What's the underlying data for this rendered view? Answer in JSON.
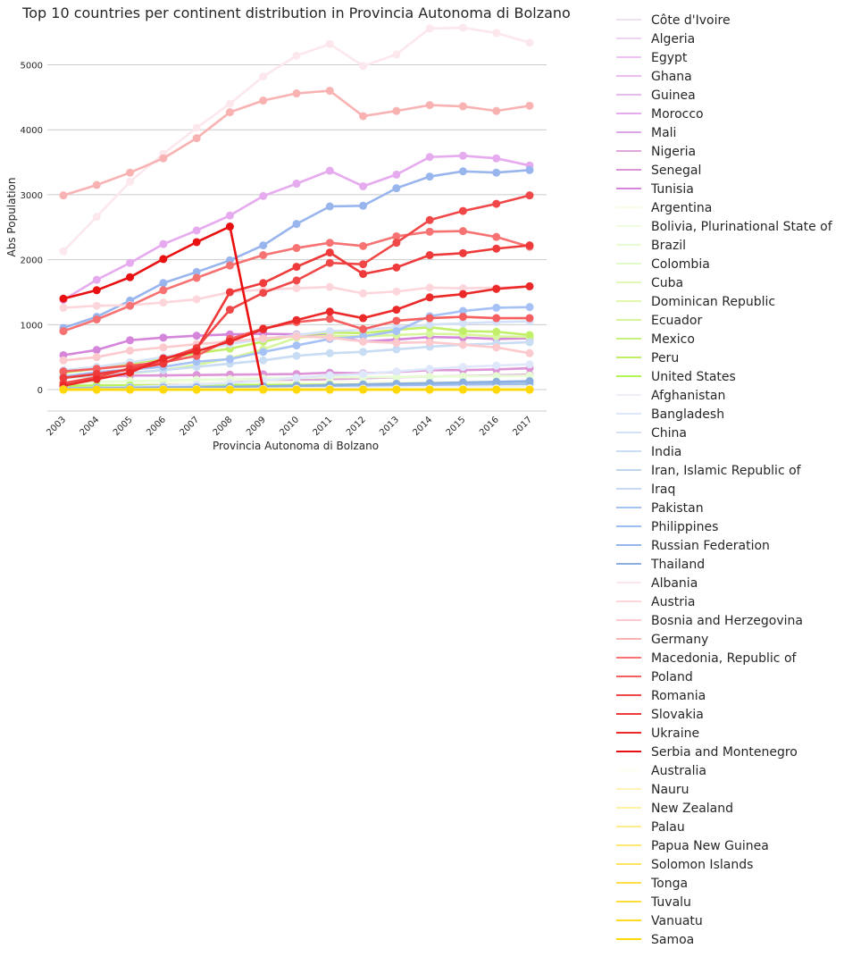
{
  "chart_data": {
    "type": "line",
    "title": "Top 10 countries per continent distribution in Provincia Autonoma di Bolzano",
    "xlabel": "Provincia Autonoma di Bolzano",
    "ylabel": "Abs Population",
    "categories": [
      "2003",
      "2004",
      "2005",
      "2006",
      "2007",
      "2008",
      "2009",
      "2010",
      "2011",
      "2012",
      "2013",
      "2014",
      "2015",
      "2016",
      "2017"
    ],
    "yticks": [
      0,
      1000,
      2000,
      3000,
      4000,
      5000
    ],
    "ylim": [
      -330,
      5750
    ],
    "grid": "horizontal",
    "legend_position": "right",
    "series": [
      {
        "name": "Côte d'Ivoire",
        "color": "#efe0f2",
        "values": [
          3,
          4,
          5,
          6,
          7,
          8,
          9,
          10,
          12,
          13,
          14,
          15,
          16,
          17,
          18
        ]
      },
      {
        "name": "Algeria",
        "color": "#efd3f2",
        "values": [
          15,
          17,
          18,
          19,
          20,
          21,
          22,
          22,
          23,
          24,
          25,
          26,
          27,
          28,
          29
        ]
      },
      {
        "name": "Egypt",
        "color": "#f0c4f5",
        "values": [
          30,
          33,
          36,
          40,
          44,
          48,
          52,
          56,
          60,
          62,
          64,
          66,
          68,
          70,
          72
        ]
      },
      {
        "name": "Ghana",
        "color": "#ecbdf0",
        "values": [
          8,
          10,
          12,
          14,
          16,
          18,
          20,
          22,
          24,
          26,
          28,
          30,
          32,
          34,
          36
        ]
      },
      {
        "name": "Guinea",
        "color": "#e6bcec",
        "values": [
          3,
          4,
          5,
          6,
          7,
          8,
          9,
          10,
          11,
          12,
          13,
          14,
          15,
          16,
          17
        ]
      },
      {
        "name": "Morocco",
        "color": "#e6aaee",
        "values": [
          1380,
          1690,
          1950,
          2240,
          2450,
          2680,
          2980,
          3170,
          3370,
          3130,
          3310,
          3580,
          3600,
          3560,
          3450
        ]
      },
      {
        "name": "Mali",
        "color": "#dca4e6",
        "values": [
          5,
          6,
          7,
          8,
          9,
          10,
          11,
          12,
          13,
          14,
          15,
          16,
          17,
          18,
          19
        ]
      },
      {
        "name": "Nigeria",
        "color": "#e0a6da",
        "values": [
          60,
          70,
          80,
          90,
          100,
          115,
          130,
          145,
          160,
          175,
          190,
          200,
          210,
          220,
          230
        ]
      },
      {
        "name": "Senegal",
        "color": "#dd95d8",
        "values": [
          200,
          210,
          215,
          220,
          225,
          230,
          235,
          240,
          260,
          250,
          270,
          300,
          300,
          310,
          330
        ]
      },
      {
        "name": "Tunisia",
        "color": "#d585da",
        "values": [
          530,
          610,
          760,
          800,
          830,
          850,
          860,
          850,
          840,
          740,
          770,
          810,
          800,
          780,
          790
        ]
      },
      {
        "name": "Argentina",
        "color": "#fafce6",
        "values": [
          90,
          95,
          100,
          105,
          110,
          112,
          115,
          118,
          120,
          115,
          118,
          120,
          118,
          116,
          115
        ]
      },
      {
        "name": "Bolivia, Plurinational State of",
        "color": "#eefcdf",
        "values": [
          10,
          12,
          14,
          16,
          18,
          20,
          22,
          24,
          26,
          28,
          30,
          30,
          30,
          30,
          30
        ]
      },
      {
        "name": "Brazil",
        "color": "#e6fcd2",
        "values": [
          110,
          120,
          130,
          140,
          150,
          160,
          170,
          180,
          190,
          190,
          195,
          200,
          205,
          210,
          215
        ]
      },
      {
        "name": "Colombia",
        "color": "#e0fac6",
        "values": [
          20,
          22,
          24,
          26,
          28,
          30,
          32,
          34,
          36,
          38,
          40,
          42,
          44,
          46,
          48
        ]
      },
      {
        "name": "Cuba",
        "color": "#dff7b7",
        "values": [
          30,
          32,
          34,
          36,
          38,
          40,
          42,
          44,
          46,
          48,
          50,
          52,
          54,
          56,
          58
        ]
      },
      {
        "name": "Dominican Republic",
        "color": "#e3f7ab",
        "values": [
          40,
          42,
          44,
          46,
          48,
          50,
          52,
          54,
          56,
          58,
          60,
          62,
          64,
          66,
          68
        ]
      },
      {
        "name": "Ecuador",
        "color": "#d7f69b",
        "values": [
          180,
          210,
          250,
          300,
          380,
          480,
          620,
          800,
          830,
          820,
          840,
          860,
          850,
          820,
          810
        ]
      },
      {
        "name": "Mexico",
        "color": "#c8f280",
        "values": [
          10,
          12,
          14,
          16,
          18,
          20,
          22,
          24,
          26,
          28,
          30,
          32,
          34,
          36,
          38
        ]
      },
      {
        "name": "Peru",
        "color": "#c1ef6a",
        "values": [
          260,
          320,
          400,
          480,
          560,
          630,
          740,
          840,
          880,
          870,
          920,
          960,
          900,
          890,
          840
        ]
      },
      {
        "name": "United States",
        "color": "#b2f555",
        "values": [
          60,
          62,
          64,
          66,
          68,
          70,
          72,
          74,
          76,
          78,
          80,
          82,
          84,
          86,
          88
        ]
      },
      {
        "name": "Afghanistan",
        "color": "#eceefc",
        "values": [
          20,
          22,
          24,
          26,
          28,
          30,
          32,
          34,
          36,
          38,
          40,
          42,
          44,
          46,
          48
        ]
      },
      {
        "name": "Bangladesh",
        "color": "#dfe8fb",
        "values": [
          20,
          30,
          40,
          60,
          80,
          100,
          140,
          180,
          220,
          240,
          280,
          320,
          350,
          370,
          390
        ]
      },
      {
        "name": "China",
        "color": "#d3e2f8",
        "values": [
          300,
          350,
          420,
          500,
          600,
          700,
          780,
          840,
          900,
          920,
          960,
          1000,
          1020,
          1040,
          1050
        ]
      },
      {
        "name": "India",
        "color": "#c8dcf4",
        "values": [
          180,
          220,
          260,
          300,
          350,
          400,
          450,
          520,
          560,
          580,
          620,
          660,
          690,
          710,
          730
        ]
      },
      {
        "name": "Iran, Islamic Republic of",
        "color": "#c0d6ee",
        "values": [
          5,
          6,
          7,
          8,
          9,
          10,
          11,
          12,
          13,
          14,
          15,
          16,
          17,
          18,
          19
        ]
      },
      {
        "name": "Iraq",
        "color": "#c6d8f5",
        "values": [
          5,
          6,
          7,
          8,
          9,
          10,
          11,
          12,
          13,
          14,
          15,
          16,
          17,
          18,
          19
        ]
      },
      {
        "name": "Pakistan",
        "color": "#a6c1f5",
        "values": [
          200,
          270,
          310,
          350,
          430,
          470,
          580,
          680,
          780,
          820,
          900,
          1130,
          1210,
          1260,
          1270
        ]
      },
      {
        "name": "Philippines",
        "color": "#9fbdf0",
        "values": [
          20,
          25,
          30,
          35,
          40,
          45,
          50,
          55,
          60,
          65,
          70,
          75,
          80,
          85,
          90
        ]
      },
      {
        "name": "Russian Federation",
        "color": "#99b5ee",
        "values": [
          950,
          1120,
          1370,
          1640,
          1810,
          1990,
          2220,
          2550,
          2820,
          2830,
          3100,
          3280,
          3360,
          3340,
          3380
        ]
      },
      {
        "name": "Thailand",
        "color": "#8bb0e0",
        "values": [
          10,
          15,
          20,
          25,
          30,
          40,
          50,
          60,
          70,
          80,
          90,
          100,
          110,
          120,
          130
        ]
      },
      {
        "name": "Albania",
        "color": "#fce8ec",
        "values": [
          2130,
          2660,
          3200,
          3630,
          4030,
          4400,
          4820,
          5140,
          5320,
          4980,
          5160,
          5560,
          5570,
          5490,
          5340
        ]
      },
      {
        "name": "Austria",
        "color": "#fdd6dc",
        "values": [
          1260,
          1290,
          1300,
          1340,
          1390,
          1500,
          1540,
          1560,
          1580,
          1480,
          1510,
          1570,
          1560,
          1570,
          1590
        ]
      },
      {
        "name": "Bosnia and Herzegovina",
        "color": "#fcc9cd",
        "values": [
          450,
          500,
          600,
          650,
          700,
          740,
          790,
          820,
          800,
          740,
          720,
          730,
          690,
          650,
          560
        ]
      },
      {
        "name": "Germany",
        "color": "#f9b2b2",
        "values": [
          2990,
          3150,
          3340,
          3560,
          3870,
          4270,
          4450,
          4560,
          4600,
          4210,
          4290,
          4380,
          4360,
          4290,
          4370
        ]
      },
      {
        "name": "Macedonia, Republic of",
        "color": "#f77272",
        "values": [
          900,
          1080,
          1290,
          1530,
          1720,
          1910,
          2070,
          2180,
          2260,
          2210,
          2360,
          2430,
          2440,
          2350,
          2200
        ]
      },
      {
        "name": "Poland",
        "color": "#f55f5f",
        "values": [
          280,
          320,
          370,
          420,
          520,
          780,
          940,
          1040,
          1090,
          930,
          1060,
          1100,
          1120,
          1100,
          1100
        ]
      },
      {
        "name": "Romania",
        "color": "#f04848",
        "values": [
          100,
          190,
          330,
          460,
          640,
          1230,
          1490,
          1680,
          1950,
          1930,
          2260,
          2610,
          2750,
          2860,
          2990
        ]
      },
      {
        "name": "Slovakia",
        "color": "#ee3a3a",
        "values": [
          180,
          240,
          310,
          400,
          620,
          1500,
          1640,
          1890,
          2110,
          1780,
          1880,
          2070,
          2100,
          2170,
          2220
        ]
      },
      {
        "name": "Ukraine",
        "color": "#eb2929",
        "values": [
          60,
          160,
          260,
          480,
          590,
          740,
          930,
          1070,
          1200,
          1100,
          1230,
          1420,
          1470,
          1550,
          1590
        ]
      },
      {
        "name": "Serbia and Montenegro",
        "color": "#e81010",
        "values": [
          1400,
          1530,
          1730,
          2010,
          2270,
          2510,
          0,
          null,
          null,
          null,
          null,
          null,
          null,
          null,
          null
        ]
      },
      {
        "name": "Australia",
        "color": "#fffff0",
        "values": [
          5,
          6,
          7,
          8,
          9,
          10,
          11,
          12,
          13,
          14,
          15,
          16,
          17,
          18,
          19
        ]
      },
      {
        "name": "Nauru",
        "color": "#fff3b8",
        "values": [
          0,
          0,
          0,
          0,
          0,
          0,
          0,
          0,
          0,
          0,
          0,
          0,
          0,
          0,
          0
        ]
      },
      {
        "name": "New Zealand",
        "color": "#fff0a4",
        "values": [
          0,
          0,
          0,
          0,
          0,
          0,
          0,
          0,
          0,
          0,
          0,
          0,
          0,
          0,
          0
        ]
      },
      {
        "name": "Palau",
        "color": "#ffec8c",
        "values": [
          0,
          0,
          0,
          0,
          0,
          0,
          0,
          0,
          0,
          0,
          0,
          0,
          0,
          0,
          0
        ]
      },
      {
        "name": "Papua New Guinea",
        "color": "#ffe876",
        "values": [
          0,
          0,
          0,
          0,
          0,
          0,
          0,
          0,
          0,
          0,
          0,
          0,
          0,
          0,
          0
        ]
      },
      {
        "name": "Solomon Islands",
        "color": "#ffe462",
        "values": [
          0,
          0,
          0,
          0,
          0,
          0,
          0,
          0,
          0,
          0,
          0,
          0,
          0,
          0,
          0
        ]
      },
      {
        "name": "Tonga",
        "color": "#ffe04c",
        "values": [
          0,
          0,
          0,
          0,
          0,
          0,
          0,
          0,
          0,
          0,
          0,
          0,
          0,
          0,
          0
        ]
      },
      {
        "name": "Tuvalu",
        "color": "#ffdd38",
        "values": [
          0,
          0,
          0,
          0,
          0,
          0,
          0,
          0,
          0,
          0,
          0,
          0,
          0,
          0,
          0
        ]
      },
      {
        "name": "Vanuatu",
        "color": "#ffdb24",
        "values": [
          0,
          0,
          0,
          0,
          0,
          0,
          0,
          0,
          0,
          0,
          0,
          0,
          0,
          0,
          0
        ]
      },
      {
        "name": "Samoa",
        "color": "#ffd80a",
        "values": [
          0,
          0,
          0,
          0,
          0,
          0,
          0,
          0,
          0,
          0,
          0,
          0,
          0,
          0,
          0
        ]
      }
    ]
  }
}
